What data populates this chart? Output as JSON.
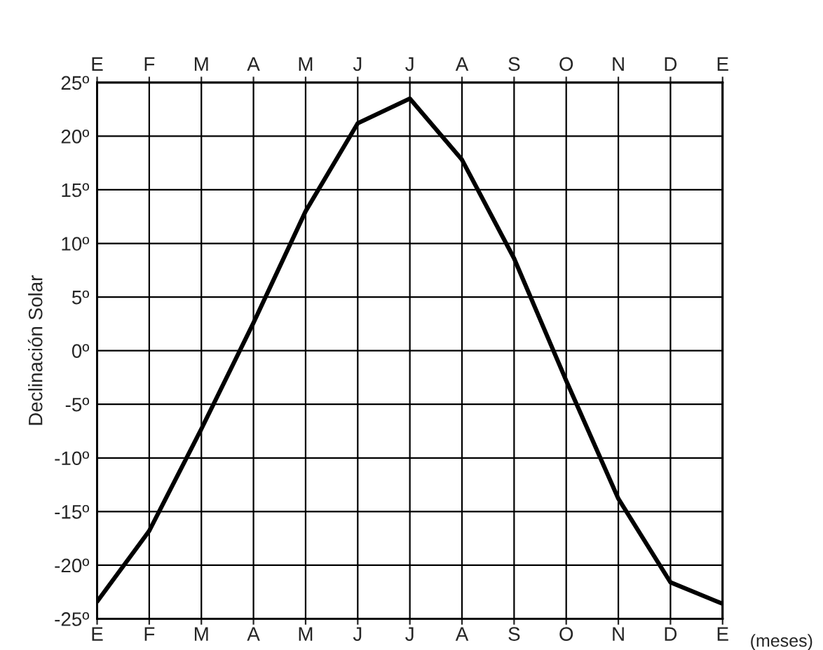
{
  "chart_data": {
    "type": "line",
    "ylabel": "Declinación Solar",
    "xlabel": "(meses)",
    "categories": [
      "E",
      "F",
      "M",
      "A",
      "M",
      "J",
      "J",
      "A",
      "S",
      "O",
      "N",
      "D",
      "E"
    ],
    "series": [
      {
        "color": "#000000",
        "values": [
          -23.4,
          -16.8,
          -7.3,
          2.6,
          13,
          21.2,
          23.5,
          17.8,
          8.6,
          -2.8,
          -13.8,
          -21.6,
          -23.6
        ]
      }
    ],
    "ylim": [
      -25,
      25
    ],
    "yticks": [
      {
        "value": -25,
        "label": "-25º"
      },
      {
        "value": -20,
        "label": "-20º"
      },
      {
        "value": -15,
        "label": "-15º"
      },
      {
        "value": -10,
        "label": "-10º"
      },
      {
        "value": -5,
        "label": "-5º"
      },
      {
        "value": 0,
        "label": "0º"
      },
      {
        "value": 5,
        "label": "5º"
      },
      {
        "value": 10,
        "label": "10º"
      },
      {
        "value": 15,
        "label": "15º"
      },
      {
        "value": 20,
        "label": "20º"
      },
      {
        "value": 25,
        "label": "25º"
      }
    ],
    "grid": true,
    "marker": "none",
    "line_style": "solid"
  }
}
